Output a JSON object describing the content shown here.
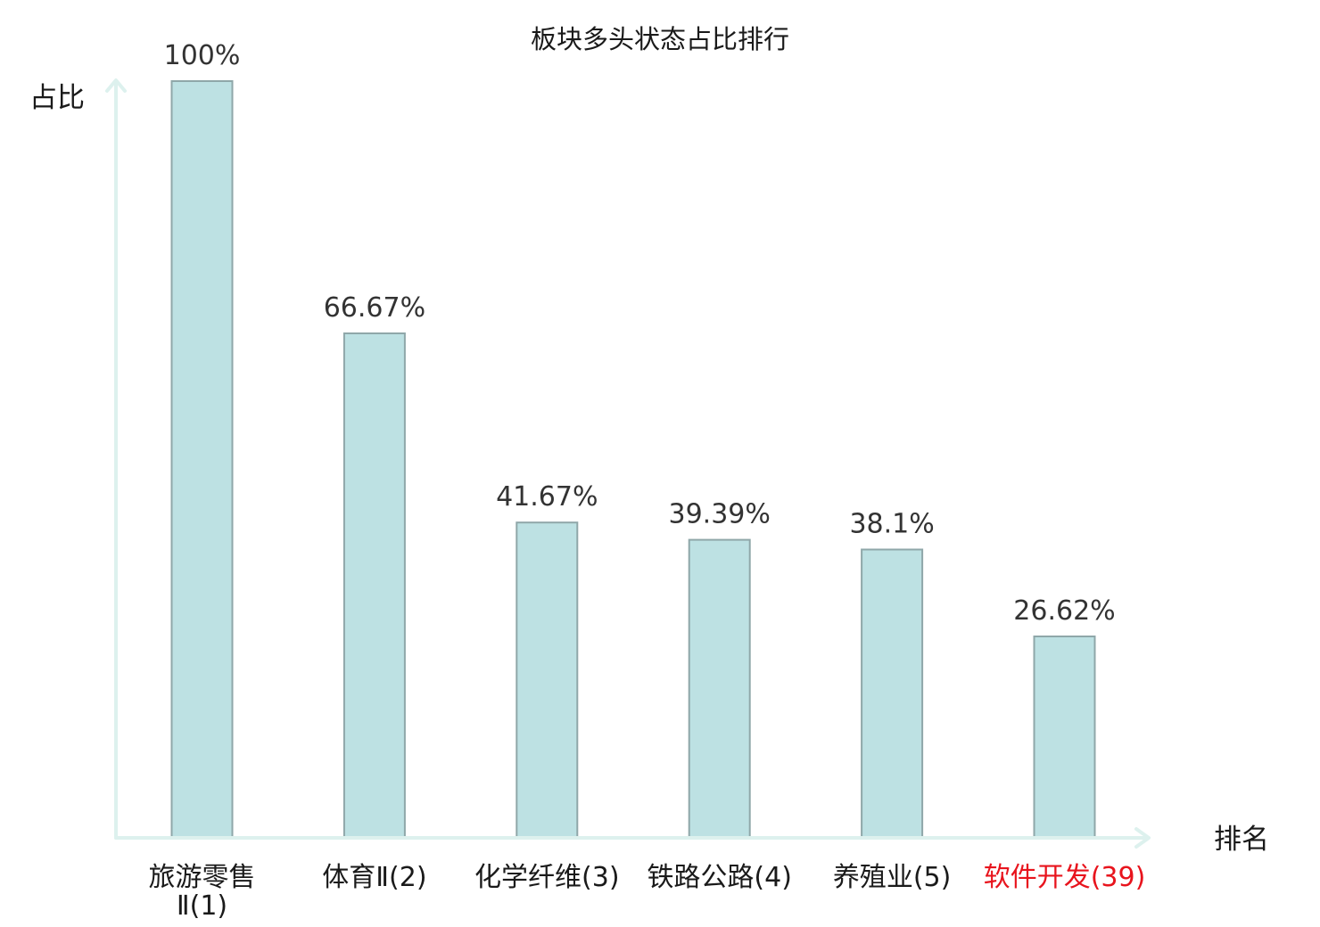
{
  "chart_data": {
    "type": "bar",
    "title": "板块多头状态占比排行",
    "ylabel": "占比",
    "xlabel": "排名",
    "ylim": [
      0,
      100
    ],
    "grid": false,
    "categories": [
      {
        "name": "旅游零售",
        "rank": "Ⅱ(1)",
        "split": true
      },
      {
        "name": "体育",
        "rank": "Ⅱ(2)",
        "split": false
      },
      {
        "name": "化学纤维",
        "rank": "(3)",
        "split": false
      },
      {
        "name": "铁路公路",
        "rank": "(4)",
        "split": false
      },
      {
        "name": "养殖业",
        "rank": "(5)",
        "split": false
      },
      {
        "name": "软件开发",
        "rank": "(39)",
        "split": false,
        "highlight": true
      }
    ],
    "values": [
      100,
      66.67,
      41.67,
      39.39,
      38.1,
      26.62
    ],
    "value_labels": [
      "100%",
      "66.67%",
      "41.67%",
      "39.39%",
      "38.1%",
      "26.62%"
    ],
    "colors": {
      "bar_fill": "#bde1e3",
      "bar_stroke": "#8fa7a9",
      "axis": "#ddf1ee",
      "highlight": "#e8141d"
    }
  }
}
